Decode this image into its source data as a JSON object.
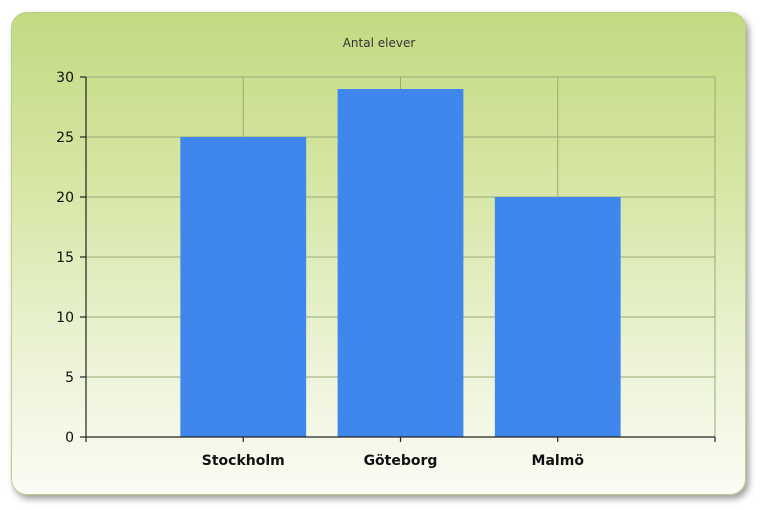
{
  "chart_data": {
    "type": "bar",
    "title": "Antal elever",
    "xlabel": "",
    "ylabel": "",
    "categories": [
      "Stockholm",
      "Göteborg",
      "Malmö"
    ],
    "values": [
      25,
      29,
      20
    ],
    "ylim": [
      0,
      30
    ],
    "yticks": [
      "0",
      "5",
      "10",
      "15",
      "20",
      "25",
      "30"
    ],
    "grid": true,
    "legend": "none",
    "colors": {
      "bar": "#3f87ec",
      "background_top": "#c3da82",
      "background_bottom": "#fbfcf4",
      "grid": "#9aaa73"
    }
  }
}
